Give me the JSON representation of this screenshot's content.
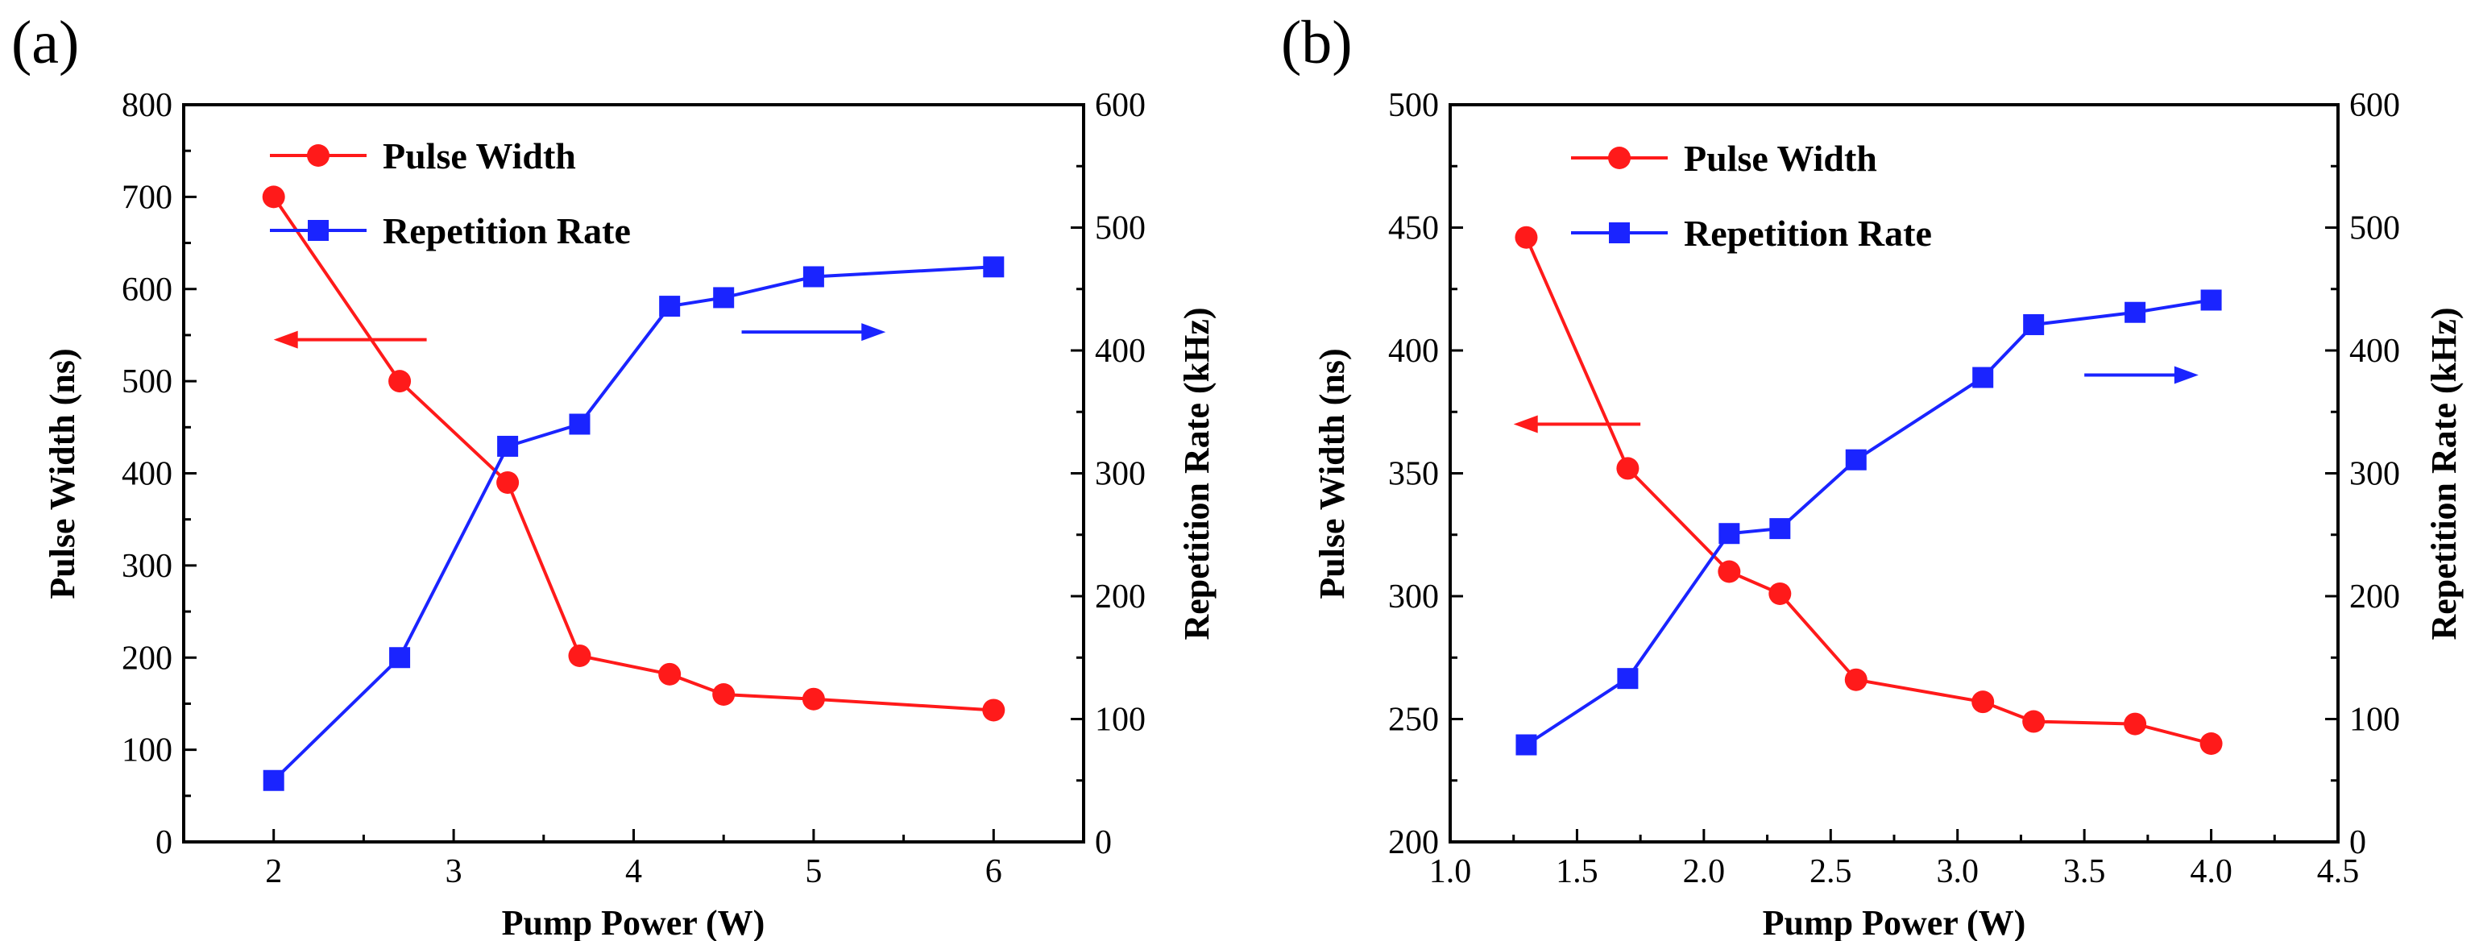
{
  "colors": {
    "pulse": "#ff1a1a",
    "rep": "#1a24ff",
    "axis": "#000000"
  },
  "chart_data": [
    {
      "panel_label": "(a)",
      "type": "line",
      "xlabel": "Pump Power (W)",
      "ylabel": "Pulse Width (ns)",
      "y2label": "Repetition Rate (kHz)",
      "xlim": [
        1.5,
        6.5
      ],
      "xticks": [
        2,
        3,
        4,
        5,
        6
      ],
      "xtick_labels": [
        "2",
        "3",
        "4",
        "5",
        "6"
      ],
      "ylim": [
        0,
        800
      ],
      "yticks": [
        0,
        100,
        200,
        300,
        400,
        500,
        600,
        700,
        800
      ],
      "ytick_labels": [
        "0",
        "100",
        "200",
        "300",
        "400",
        "500",
        "600",
        "700",
        "800"
      ],
      "y2lim": [
        0,
        600
      ],
      "y2ticks": [
        0,
        100,
        200,
        300,
        400,
        500,
        600
      ],
      "y2tick_labels": [
        "0",
        "100",
        "200",
        "300",
        "400",
        "500",
        "600"
      ],
      "legend_position": "top-left",
      "series": [
        {
          "name": "Pulse Width",
          "axis": "left",
          "marker": "circle",
          "color": "#ff1a1a",
          "x": [
            2.0,
            2.7,
            3.3,
            3.7,
            4.2,
            4.5,
            5.0,
            6.0
          ],
          "y": [
            700,
            500,
            390,
            202,
            182,
            160,
            155,
            143
          ]
        },
        {
          "name": "Repetition Rate",
          "axis": "right",
          "marker": "square",
          "color": "#1a24ff",
          "x": [
            2.0,
            2.7,
            3.3,
            3.7,
            4.2,
            4.5,
            5.0,
            6.0
          ],
          "y": [
            50,
            150,
            322,
            340,
            436,
            443,
            460,
            468
          ]
        }
      ],
      "arrows": [
        {
          "direction": "left",
          "color": "#ff1a1a",
          "from": [
            2.85,
            545
          ],
          "to": [
            2.0,
            545
          ]
        },
        {
          "direction": "right",
          "color": "#1a24ff",
          "from": [
            4.6,
            415
          ],
          "to": [
            5.4,
            415
          ]
        }
      ]
    },
    {
      "panel_label": "(b)",
      "type": "line",
      "xlabel": "Pump Power (W)",
      "ylabel": "Pulse Width (ns)",
      "y2label": "Repetition Rate (kHz)",
      "xlim": [
        1.0,
        4.5
      ],
      "xticks": [
        1.0,
        1.5,
        2.0,
        2.5,
        3.0,
        3.5,
        4.0,
        4.5
      ],
      "xtick_labels": [
        "1.0",
        "1.5",
        "2.0",
        "2.5",
        "3.0",
        "3.5",
        "4.0",
        "4.5"
      ],
      "ylim": [
        200,
        500
      ],
      "yticks": [
        200,
        250,
        300,
        350,
        400,
        450,
        500
      ],
      "ytick_labels": [
        "200",
        "250",
        "300",
        "350",
        "400",
        "450",
        "500"
      ],
      "y2lim": [
        0,
        600
      ],
      "y2ticks": [
        0,
        100,
        200,
        300,
        400,
        500,
        600
      ],
      "y2tick_labels": [
        "0",
        "100",
        "200",
        "300",
        "400",
        "500",
        "600"
      ],
      "legend_position": "top-left",
      "series": [
        {
          "name": "Pulse Width",
          "axis": "left",
          "marker": "circle",
          "color": "#ff1a1a",
          "x": [
            1.3,
            1.7,
            2.1,
            2.3,
            2.6,
            3.1,
            3.3,
            3.7,
            4.0
          ],
          "y": [
            446,
            352,
            310,
            301,
            266,
            257,
            249,
            248,
            240
          ]
        },
        {
          "name": "Repetition Rate",
          "axis": "right",
          "marker": "square",
          "color": "#1a24ff",
          "x": [
            1.3,
            1.7,
            2.1,
            2.3,
            2.6,
            3.1,
            3.3,
            3.7,
            4.0
          ],
          "y": [
            79,
            133,
            251,
            255,
            311,
            378,
            421,
            431,
            441
          ]
        }
      ],
      "arrows": [
        {
          "direction": "left",
          "color": "#ff1a1a",
          "from": [
            1.75,
            370
          ],
          "to": [
            1.25,
            370
          ]
        },
        {
          "direction": "right",
          "color": "#1a24ff",
          "from": [
            3.5,
            380
          ],
          "to": [
            3.95,
            380
          ]
        }
      ]
    }
  ]
}
